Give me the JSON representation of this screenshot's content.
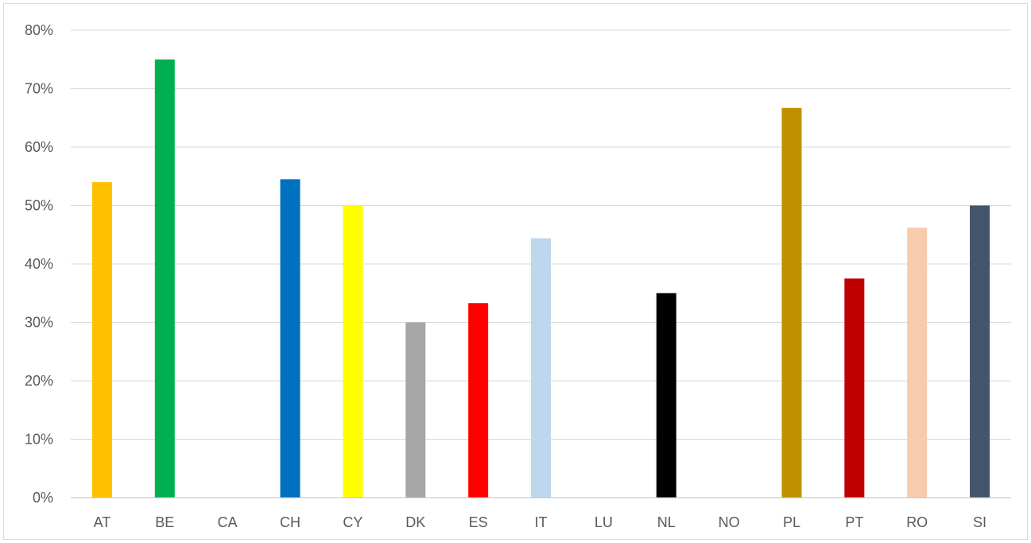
{
  "chart_data": {
    "type": "bar",
    "title": "",
    "xlabel": "",
    "ylabel": "",
    "categories": [
      "AT",
      "BE",
      "CA",
      "CH",
      "CY",
      "DK",
      "ES",
      "IT",
      "LU",
      "NL",
      "NO",
      "PL",
      "PT",
      "RO",
      "SI"
    ],
    "values": [
      54,
      75,
      0,
      54.5,
      50,
      30,
      33.3,
      44.4,
      0,
      35,
      0,
      66.7,
      37.5,
      46.2,
      50
    ],
    "colors": [
      "#FFC000",
      "#00B050",
      "#FFFFFF",
      "#0070C0",
      "#FFFF00",
      "#A6A6A6",
      "#FF0000",
      "#BDD7EE",
      "#FFFFFF",
      "#000000",
      "#FFFFFF",
      "#BF9000",
      "#C00000",
      "#F8CBAD",
      "#44546A"
    ],
    "ylim": [
      0,
      80
    ],
    "yticks": [
      "0%",
      "10%",
      "20%",
      "30%",
      "40%",
      "50%",
      "60%",
      "70%",
      "80%"
    ],
    "grid": true,
    "legend": "none"
  }
}
